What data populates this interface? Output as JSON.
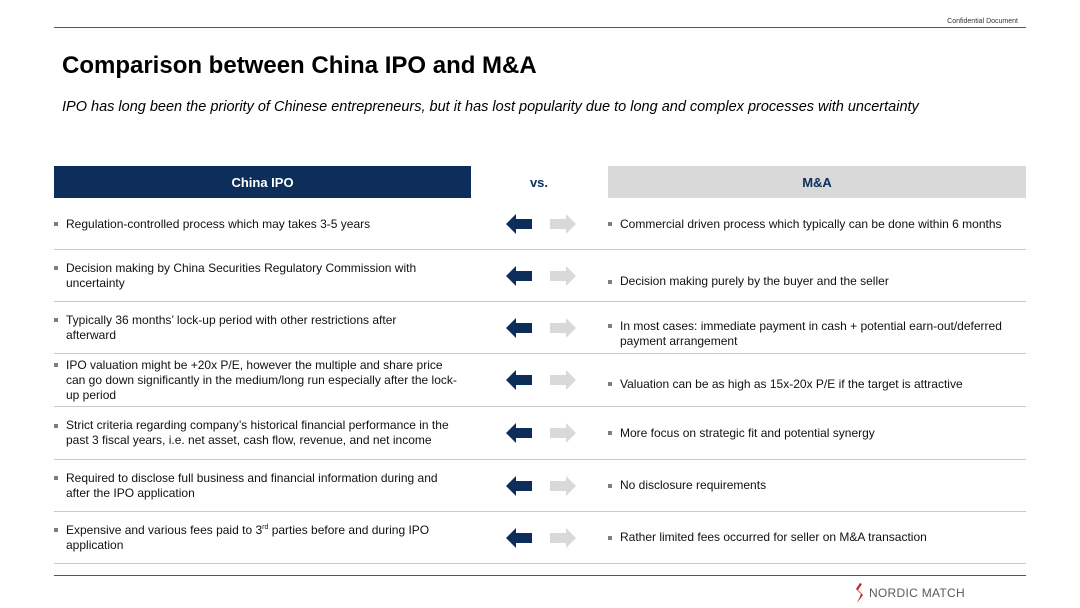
{
  "header": {
    "confidential": "Confidential Document"
  },
  "title": "Comparison between China IPO and M&A",
  "subtitle": "IPO has long been the priority of Chinese entrepreneurs, but it has lost popularity due to long and complex processes with uncertainty",
  "table": {
    "left_header": "China IPO",
    "vs_label": "vs.",
    "right_header": "M&A",
    "colors": {
      "left_header_bg": "#0d2e5b",
      "right_header_bg": "#d9d9d9",
      "arrow_active": "#0d2e5b",
      "arrow_inactive": "#d9d9d9"
    },
    "rows": [
      {
        "left": "Regulation-controlled process which may takes 3-5 years",
        "right": "Commercial driven process which typically can be done within 6 months"
      },
      {
        "left": "Decision making by China Securities Regulatory Commission with uncertainty",
        "right": "Decision making purely by the buyer and the seller"
      },
      {
        "left": "Typically 36 months’ lock-up period with other restrictions after afterward",
        "right": "In most cases: immediate payment in cash + potential earn-out/deferred payment arrangement"
      },
      {
        "left": "IPO valuation might be +20x P/E, however the multiple and share price can go down significantly in the medium/long run especially after the lock-up period",
        "right": "Valuation can be as high as 15x-20x P/E if the target is attractive"
      },
      {
        "left": "Strict criteria regarding company’s historical financial performance in the past 3 fiscal years, i.e. net asset, cash flow, revenue, and net income",
        "right": "More focus on strategic fit and potential synergy"
      },
      {
        "left": "Required to disclose full business and financial information during and after the IPO application",
        "right": "No disclosure requirements"
      },
      {
        "left_pre": "Expensive and various fees paid to 3",
        "left_sup": "rd",
        "left_post": " parties before and during IPO application",
        "right": "Rather limited fees occurred for seller on M&A transaction"
      }
    ]
  },
  "footer": {
    "brand": "NORDIC MATCH",
    "brand_color": "#c0272d"
  }
}
